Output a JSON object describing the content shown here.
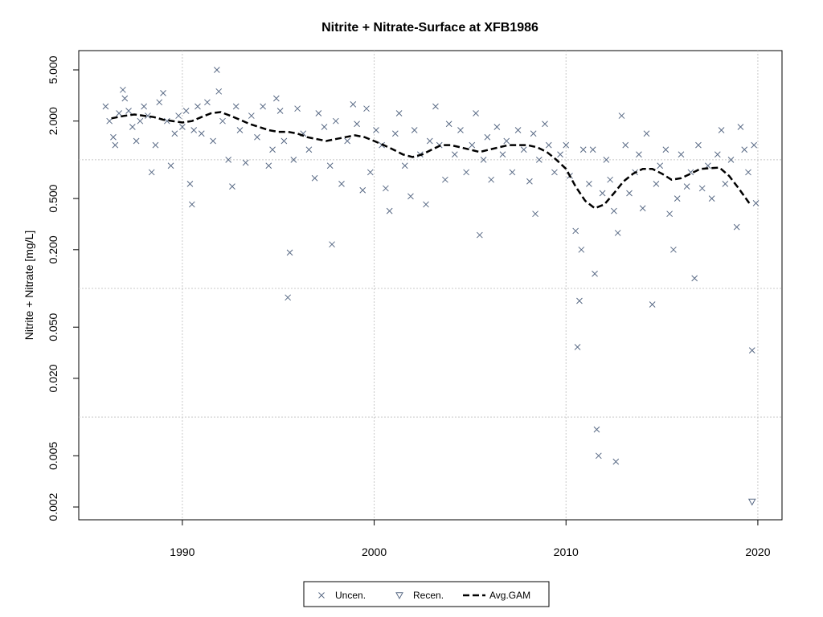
{
  "chart_data": {
    "type": "scatter",
    "title": "Nitrite + Nitrate-Surface at XFB1986",
    "y_label": "Nitrite + Nitrate [mg/L]",
    "log_y": true,
    "grid": true,
    "legend": "bottom",
    "xlim": [
      1984.6,
      2021.26
    ],
    "ylim": [
      0.00159,
      7.06
    ],
    "xticks": [
      1990,
      2000,
      2010,
      2020
    ],
    "yticks": [
      {
        "value": 5,
        "label": "5.000"
      },
      {
        "value": 2,
        "label": "2.000"
      },
      {
        "value": 0.5,
        "label": "0.500"
      },
      {
        "value": 0.2,
        "label": "0.200"
      },
      {
        "value": 0.05,
        "label": "0.050"
      },
      {
        "value": 0.02,
        "label": "0.020"
      },
      {
        "value": 0.005,
        "label": "0.005"
      },
      {
        "value": 0.002,
        "label": "0.002"
      }
    ],
    "ygrid": [
      1,
      0.1,
      0.01
    ],
    "series": [
      {
        "name": "Uncen.",
        "color": "#5a6b86",
        "marker": "x",
        "x": [
          1986.0,
          1986.2,
          1986.4,
          1986.5,
          1986.7,
          1986.9,
          1987.0,
          1987.2,
          1987.4,
          1987.6,
          1987.8,
          1988.0,
          1988.2,
          1988.4,
          1988.6,
          1988.8,
          1989.0,
          1989.2,
          1989.4,
          1989.6,
          1989.8,
          1990.0,
          1990.2,
          1990.6,
          1990.8,
          1991.0,
          1991.3,
          1991.6,
          1991.9,
          1992.1,
          1992.4,
          1992.6,
          1992.8,
          1993.0,
          1993.3,
          1993.6,
          1993.9,
          1994.2,
          1994.5,
          1994.7,
          1994.9,
          1995.1,
          1995.3,
          1995.8,
          1996.0,
          1996.3,
          1996.6,
          1996.9,
          1997.1,
          1997.4,
          1997.7,
          1998.0,
          1998.3,
          1998.6,
          1998.9,
          1999.1,
          1999.4,
          1999.6,
          1999.8,
          2000.1,
          2000.4,
          2000.6,
          2000.8,
          2001.1,
          2001.3,
          2001.6,
          2001.9,
          2002.1,
          2002.4,
          2002.7,
          2002.9,
          2003.2,
          2003.4,
          2003.7,
          2003.9,
          2004.2,
          2004.5,
          2004.8,
          2005.1,
          2005.3,
          2005.7,
          2005.9,
          2006.1,
          2006.4,
          2006.7,
          2006.9,
          2007.2,
          2007.5,
          2007.8,
          2008.1,
          2008.3,
          2008.6,
          2008.9,
          2009.1,
          2009.4,
          2009.7,
          2010.0,
          2010.2,
          2010.9,
          2011.2,
          2011.4,
          2011.9,
          2012.1,
          2012.3,
          2012.5,
          2012.9,
          2013.1,
          2013.3,
          2013.6,
          2013.8,
          2014.0,
          2014.2,
          2014.7,
          2014.9,
          2015.2,
          2015.4,
          2015.8,
          2016.0,
          2016.3,
          2016.5,
          2016.9,
          2017.1,
          2017.4,
          2017.6,
          2017.9,
          2018.1,
          2018.3,
          2018.6,
          2018.9,
          2019.1,
          2019.3,
          2019.5,
          2019.8,
          1990.5,
          1990.4,
          1995.6,
          1995.5,
          1997.8,
          2005.5,
          2008.4,
          2010.5,
          2010.6,
          2010.7,
          2010.8,
          2011.5,
          2011.6,
          2011.7,
          2012.6,
          2012.7,
          2014.5,
          2015.6,
          2016.7,
          2019.7,
          2019.9,
          1991.8
        ],
        "values": [
          2.6,
          2.0,
          1.5,
          1.3,
          2.3,
          3.5,
          3.0,
          2.4,
          1.8,
          1.4,
          2.0,
          2.6,
          2.2,
          0.8,
          1.3,
          2.8,
          3.3,
          2.0,
          0.9,
          1.6,
          2.2,
          1.8,
          2.4,
          1.7,
          2.6,
          1.6,
          2.8,
          1.4,
          3.4,
          2.0,
          1.0,
          0.62,
          2.6,
          1.7,
          0.95,
          2.2,
          1.5,
          2.6,
          0.9,
          1.2,
          3.0,
          2.4,
          1.4,
          1.0,
          2.5,
          1.6,
          1.2,
          0.72,
          2.3,
          1.8,
          0.9,
          2.0,
          0.65,
          1.4,
          2.7,
          1.9,
          0.58,
          2.5,
          0.8,
          1.7,
          1.3,
          0.6,
          0.4,
          1.6,
          2.3,
          0.9,
          0.52,
          1.7,
          1.1,
          0.45,
          1.4,
          2.6,
          1.3,
          0.7,
          1.9,
          1.1,
          1.7,
          0.8,
          1.3,
          2.3,
          1.0,
          1.5,
          0.7,
          1.8,
          1.1,
          1.4,
          0.8,
          1.7,
          1.2,
          0.68,
          1.6,
          1.0,
          1.9,
          1.3,
          0.8,
          1.1,
          1.3,
          0.75,
          1.2,
          0.65,
          1.2,
          0.55,
          1.0,
          0.7,
          0.4,
          2.2,
          1.3,
          0.55,
          0.8,
          1.1,
          0.42,
          1.6,
          0.65,
          0.9,
          1.2,
          0.38,
          0.5,
          1.1,
          0.62,
          0.8,
          1.3,
          0.6,
          0.9,
          0.5,
          1.1,
          1.7,
          0.65,
          1.0,
          0.3,
          1.8,
          1.2,
          0.8,
          1.3,
          0.45,
          0.65,
          0.19,
          0.085,
          0.22,
          0.26,
          0.38,
          0.28,
          0.035,
          0.08,
          0.2,
          0.13,
          0.008,
          0.005,
          0.0045,
          0.27,
          0.075,
          0.2,
          0.12,
          0.033,
          0.46,
          5.0
        ]
      },
      {
        "name": "Recen.",
        "color": "#5a6b86",
        "marker": "triangle-down",
        "x": [
          2019.7
        ],
        "values": [
          0.0022
        ]
      },
      {
        "name": "Avg.GAM",
        "color": "#000000",
        "marker": "dashed-line",
        "x": [
          1986.3,
          1987,
          1987.5,
          1988,
          1988.5,
          1989,
          1989.5,
          1990,
          1990.5,
          1991,
          1991.5,
          1992,
          1992.5,
          1993,
          1993.5,
          1994,
          1994.5,
          1995,
          1995.5,
          1996,
          1996.5,
          1997,
          1997.5,
          1998,
          1998.5,
          1999,
          1999.5,
          2000,
          2000.5,
          2001,
          2001.5,
          2002,
          2002.5,
          2003,
          2003.5,
          2004,
          2004.5,
          2005,
          2005.5,
          2006,
          2006.5,
          2007,
          2007.5,
          2008,
          2008.5,
          2009,
          2009.5,
          2010,
          2010.5,
          2011,
          2011.5,
          2012,
          2012.5,
          2013,
          2013.5,
          2014,
          2014.5,
          2015,
          2015.5,
          2016,
          2016.5,
          2017,
          2017.5,
          2018,
          2018.5,
          2019,
          2019.6
        ],
        "values": [
          2.1,
          2.2,
          2.25,
          2.2,
          2.15,
          2.05,
          2.0,
          1.95,
          2.0,
          2.15,
          2.3,
          2.35,
          2.2,
          2.05,
          1.9,
          1.8,
          1.7,
          1.65,
          1.65,
          1.6,
          1.5,
          1.45,
          1.4,
          1.45,
          1.5,
          1.55,
          1.5,
          1.4,
          1.3,
          1.2,
          1.1,
          1.05,
          1.1,
          1.2,
          1.3,
          1.3,
          1.25,
          1.2,
          1.15,
          1.2,
          1.25,
          1.3,
          1.3,
          1.3,
          1.25,
          1.15,
          1.0,
          0.85,
          0.62,
          0.48,
          0.42,
          0.45,
          0.55,
          0.68,
          0.78,
          0.85,
          0.85,
          0.78,
          0.7,
          0.72,
          0.78,
          0.85,
          0.86,
          0.87,
          0.75,
          0.6,
          0.45
        ]
      }
    ]
  }
}
